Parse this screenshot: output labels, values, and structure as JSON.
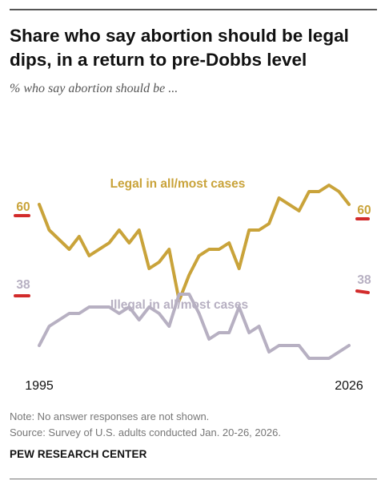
{
  "header": {
    "title_line1": "Share who say abortion should be legal",
    "title_line2": "dips, in a return to pre-Dobbs level",
    "subtitle": "% who say abortion should be ..."
  },
  "footer": {
    "note": "Note: No answer responses are not shown.",
    "source": "Source: Survey of U.S. adults conducted Jan. 20-26, 2026.",
    "brand": "PEW RESEARCH CENTER"
  },
  "colors": {
    "legal": "#C9A33A",
    "illegal": "#B7B0C2",
    "endpoint_marker": "#D22B2B"
  },
  "chart_data": {
    "type": "line",
    "x_start_label": "1995",
    "x_end_label": "2026",
    "ylim": [
      25,
      75
    ],
    "series": [
      {
        "name": "Legal in all/most cases",
        "start_label": "60",
        "end_label": "60",
        "points": [
          [
            1995,
            60
          ],
          [
            1996,
            56
          ],
          [
            1998,
            53
          ],
          [
            1999,
            55
          ],
          [
            2000,
            52
          ],
          [
            2002,
            54
          ],
          [
            2003,
            56
          ],
          [
            2004,
            54
          ],
          [
            2005,
            56
          ],
          [
            2006,
            50
          ],
          [
            2007,
            51
          ],
          [
            2008,
            53
          ],
          [
            2009,
            45
          ],
          [
            2010,
            49
          ],
          [
            2011,
            52
          ],
          [
            2012,
            53
          ],
          [
            2013,
            53
          ],
          [
            2014,
            54
          ],
          [
            2015,
            50
          ],
          [
            2016,
            56
          ],
          [
            2017,
            56
          ],
          [
            2018,
            57
          ],
          [
            2019,
            61
          ],
          [
            2021,
            59
          ],
          [
            2022,
            62
          ],
          [
            2023,
            62
          ],
          [
            2024,
            63
          ],
          [
            2025,
            62
          ],
          [
            2026,
            60
          ]
        ]
      },
      {
        "name": "Illegal in all/most cases",
        "start_label": "38",
        "end_label": "38",
        "points": [
          [
            1995,
            38
          ],
          [
            1996,
            41
          ],
          [
            1998,
            43
          ],
          [
            1999,
            43
          ],
          [
            2000,
            44
          ],
          [
            2002,
            44
          ],
          [
            2003,
            43
          ],
          [
            2004,
            44
          ],
          [
            2005,
            42
          ],
          [
            2006,
            44
          ],
          [
            2007,
            43
          ],
          [
            2008,
            41
          ],
          [
            2009,
            46
          ],
          [
            2010,
            46
          ],
          [
            2011,
            43
          ],
          [
            2012,
            39
          ],
          [
            2013,
            40
          ],
          [
            2014,
            40
          ],
          [
            2015,
            44
          ],
          [
            2016,
            40
          ],
          [
            2017,
            41
          ],
          [
            2018,
            37
          ],
          [
            2019,
            38
          ],
          [
            2021,
            38
          ],
          [
            2022,
            36
          ],
          [
            2023,
            36
          ],
          [
            2024,
            36
          ],
          [
            2025,
            37
          ],
          [
            2026,
            38
          ]
        ]
      }
    ]
  }
}
